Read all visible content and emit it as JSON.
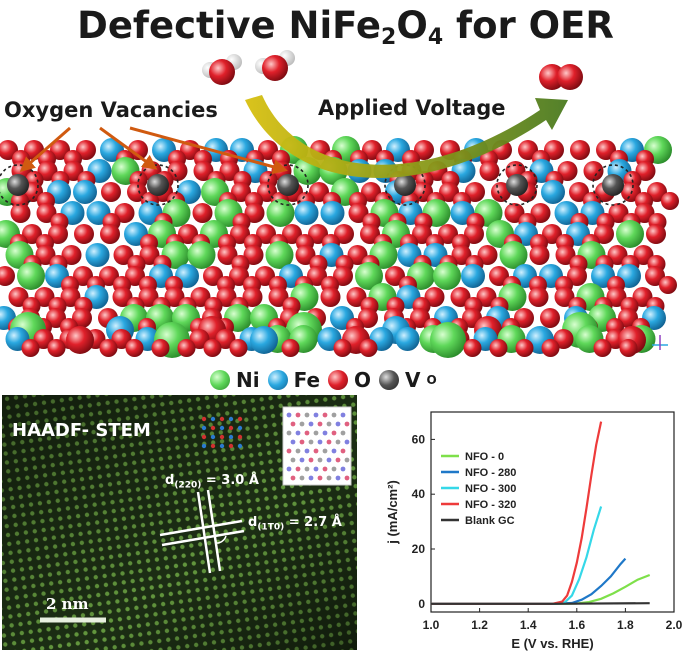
{
  "title": {
    "prefix": "Defective NiFe",
    "sub1": "2",
    "mid": "O",
    "sub2": "4",
    "suffix": " for OER"
  },
  "callouts": {
    "oxygen_vacancies": "Oxygen Vacancies",
    "applied_voltage": "Applied Voltage"
  },
  "legend": {
    "items": [
      {
        "label": "Ni",
        "color": "#5fd85a"
      },
      {
        "label": "Fe",
        "color": "#2aa8e0"
      },
      {
        "label": "O",
        "color": "#e0202a"
      },
      {
        "label": "V",
        "sub": "O",
        "color": "#555555"
      }
    ]
  },
  "colors": {
    "ni": "#5fd85a",
    "fe": "#2aa8e0",
    "o": "#e0202a",
    "vacancy": "#555555",
    "arrow_yellow": "#d8c010",
    "arrow_green": "#4a7a20"
  },
  "stem": {
    "label": "HAADF- STEM",
    "d220": {
      "prefix": "d",
      "sub": "(220)",
      "value": " = 3.0 Å"
    },
    "d1t0": {
      "prefix": "d",
      "sub": "(1T0)",
      "value": " = 2.7 Å"
    },
    "scale_bar": "2 nm"
  },
  "chart_data": {
    "type": "line",
    "xlabel": "E (V vs. RHE)",
    "ylabel": "j (mA/cm²)",
    "xlim": [
      1.0,
      2.0
    ],
    "ylim": [
      -3,
      70
    ],
    "x_ticks": [
      "1.0",
      "1.2",
      "1.4",
      "1.6",
      "1.8",
      "2.0"
    ],
    "y_ticks": [
      "0",
      "20",
      "40",
      "60"
    ],
    "legend_position": "top-left",
    "series": [
      {
        "name": "NFO - 0",
        "color": "#7ee04a",
        "x": [
          1.0,
          1.5,
          1.6,
          1.65,
          1.7,
          1.75,
          1.8,
          1.85,
          1.9
        ],
        "y": [
          0,
          0,
          0.1,
          0.6,
          1.8,
          3.8,
          6.2,
          8.8,
          10.5
        ]
      },
      {
        "name": "NFO - 280",
        "color": "#1f78c8",
        "x": [
          1.0,
          1.5,
          1.58,
          1.62,
          1.66,
          1.7,
          1.74,
          1.78,
          1.8
        ],
        "y": [
          0,
          0,
          0.3,
          1.5,
          3.5,
          6.5,
          10.0,
          14.5,
          16.5
        ]
      },
      {
        "name": "NFO - 300",
        "color": "#35d8e8",
        "x": [
          1.0,
          1.5,
          1.55,
          1.58,
          1.61,
          1.64,
          1.67,
          1.7
        ],
        "y": [
          0,
          0,
          0.5,
          3.0,
          9.0,
          17.0,
          27.0,
          35.5
        ]
      },
      {
        "name": "NFO - 320",
        "color": "#ee3b3b",
        "x": [
          1.0,
          1.5,
          1.54,
          1.56,
          1.58,
          1.6,
          1.62,
          1.64,
          1.66,
          1.68,
          1.7
        ],
        "y": [
          0,
          0,
          0.8,
          3.0,
          8.0,
          15.0,
          24.0,
          35.0,
          47.0,
          58.0,
          66.5
        ]
      },
      {
        "name": "Blank GC",
        "color": "#333333",
        "x": [
          1.0,
          1.5,
          1.9
        ],
        "y": [
          0,
          0,
          0.2
        ]
      }
    ]
  }
}
